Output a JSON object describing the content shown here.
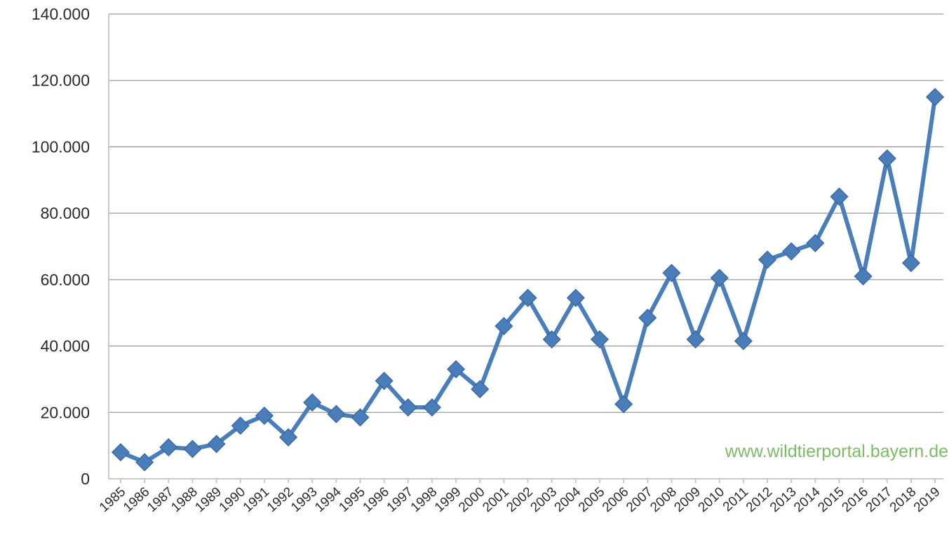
{
  "chart_data": {
    "type": "line",
    "title": "",
    "xlabel": "",
    "ylabel": "",
    "ylim": [
      0,
      140000
    ],
    "yticks": [
      0,
      20000,
      40000,
      60000,
      80000,
      100000,
      120000,
      140000
    ],
    "ytick_labels": [
      "0",
      "20.000",
      "40.000",
      "60.000",
      "80.000",
      "100.000",
      "120.000",
      "140.000"
    ],
    "grid": true,
    "x": [
      "1985",
      "1986",
      "1987",
      "1988",
      "1989",
      "1990",
      "1991",
      "1992",
      "1993",
      "1994",
      "1995",
      "1996",
      "1997",
      "1998",
      "1999",
      "2000",
      "2001",
      "2002",
      "2003",
      "2004",
      "2005",
      "2006",
      "2007",
      "2008",
      "2009",
      "2010",
      "2011",
      "2012",
      "2013",
      "2014",
      "2015",
      "2016",
      "2017",
      "2018",
      "2019"
    ],
    "series": [
      {
        "values": [
          8000,
          5000,
          9500,
          9000,
          10500,
          16000,
          19000,
          12500,
          23000,
          19500,
          18500,
          29500,
          21500,
          21500,
          33000,
          27000,
          46000,
          54500,
          42000,
          54500,
          42000,
          22500,
          48500,
          62000,
          42000,
          60500,
          41500,
          66000,
          68500,
          71000,
          85000,
          61000,
          96500,
          65000,
          115000
        ],
        "color": "#4a7ebb"
      }
    ],
    "annotation": "www.wildtierportal.bayern.de"
  }
}
